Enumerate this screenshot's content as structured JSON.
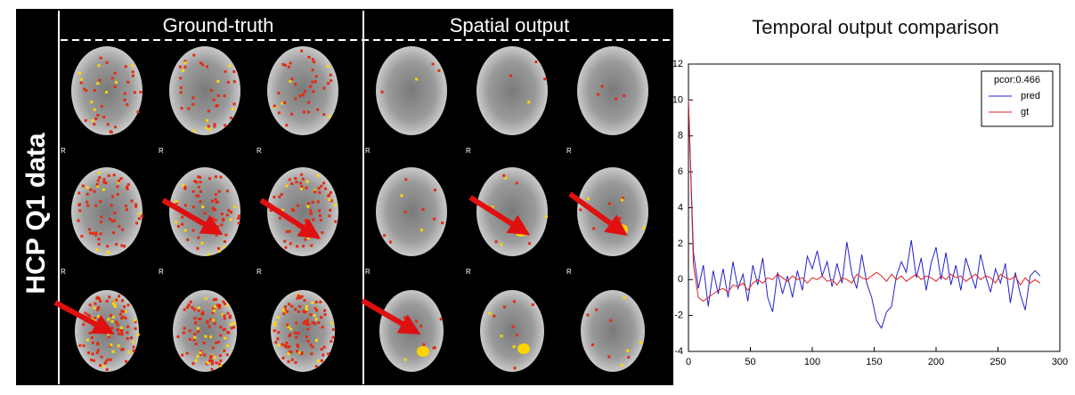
{
  "left_panel": {
    "row_label": "HCP Q1 data",
    "columns": [
      "Ground-truth",
      "Spatial output"
    ],
    "orientation_label": "R"
  },
  "chart_data": {
    "type": "line",
    "title": "Temporal output comparison",
    "legend_title": "pcor:0.466",
    "legend_corner": "upper right",
    "x": [
      0,
      4,
      8,
      12,
      16,
      20,
      24,
      28,
      32,
      36,
      40,
      44,
      48,
      52,
      56,
      60,
      64,
      68,
      72,
      76,
      80,
      84,
      88,
      92,
      96,
      100,
      104,
      108,
      112,
      116,
      120,
      124,
      128,
      132,
      136,
      140,
      144,
      148,
      152,
      156,
      160,
      164,
      168,
      172,
      176,
      180,
      184,
      188,
      192,
      196,
      200,
      204,
      208,
      212,
      216,
      220,
      224,
      228,
      232,
      236,
      240,
      244,
      248,
      252,
      256,
      260,
      264,
      268,
      272,
      276,
      280,
      284
    ],
    "series": [
      {
        "name": "pred",
        "color": "#2222cc",
        "values": [
          10,
          1.5,
          -0.5,
          0.8,
          -1.5,
          0.5,
          -0.8,
          0.6,
          -1.0,
          1.0,
          -0.5,
          0.3,
          -1.2,
          0.8,
          -0.3,
          1.2,
          -1.0,
          -1.8,
          0.4,
          -0.8,
          0.2,
          -1.0,
          0.5,
          -0.6,
          1.3,
          0.6,
          1.6,
          0.2,
          1.0,
          -0.4,
          0.9,
          -0.2,
          2.1,
          0.3,
          -0.5,
          1.4,
          -0.2,
          -1.0,
          -2.3,
          -2.7,
          -1.8,
          -1.5,
          0.2,
          1.0,
          0.4,
          2.2,
          0.1,
          1.2,
          -0.6,
          0.9,
          1.8,
          0.0,
          1.5,
          -0.3,
          0.8,
          -0.6,
          1.2,
          0.3,
          -0.5,
          1.4,
          0.2,
          -0.7,
          0.6,
          -0.2,
          0.9,
          -1.3,
          0.4,
          -0.8,
          -1.7,
          0.2,
          0.5,
          0.2
        ]
      },
      {
        "name": "gt",
        "color": "#e02020",
        "values": [
          10,
          0.8,
          -1.0,
          -1.2,
          -1.0,
          -0.8,
          -0.6,
          -0.5,
          -0.7,
          -0.3,
          -0.4,
          -0.2,
          -0.6,
          -0.2,
          0.0,
          -0.2,
          0.1,
          0.0,
          0.3,
          0.1,
          -0.1,
          0.2,
          0.0,
          0.1,
          -0.2,
          0.1,
          0.0,
          0.2,
          -0.1,
          0.0,
          -0.3,
          0.1,
          0.0,
          -0.2,
          0.3,
          0.1,
          0.0,
          0.2,
          0.4,
          0.2,
          -0.1,
          0.3,
          0.0,
          0.2,
          -0.1,
          0.1,
          0.3,
          0.0,
          0.2,
          0.1,
          -0.1,
          0.2,
          0.0,
          0.3,
          0.1,
          0.2,
          -0.1,
          0.1,
          0.3,
          0.0,
          0.2,
          0.1,
          -0.2,
          0.3,
          0.1,
          0.0,
          0.2,
          -0.3,
          0.1,
          -0.2,
          0.0,
          -0.2
        ]
      }
    ],
    "xlim": [
      0,
      300
    ],
    "xticks": [
      0,
      50,
      100,
      150,
      200,
      250,
      300
    ],
    "ylim": [
      -4,
      12
    ],
    "yticks": [
      -4,
      -2,
      0,
      2,
      4,
      6,
      8,
      10,
      12
    ]
  }
}
